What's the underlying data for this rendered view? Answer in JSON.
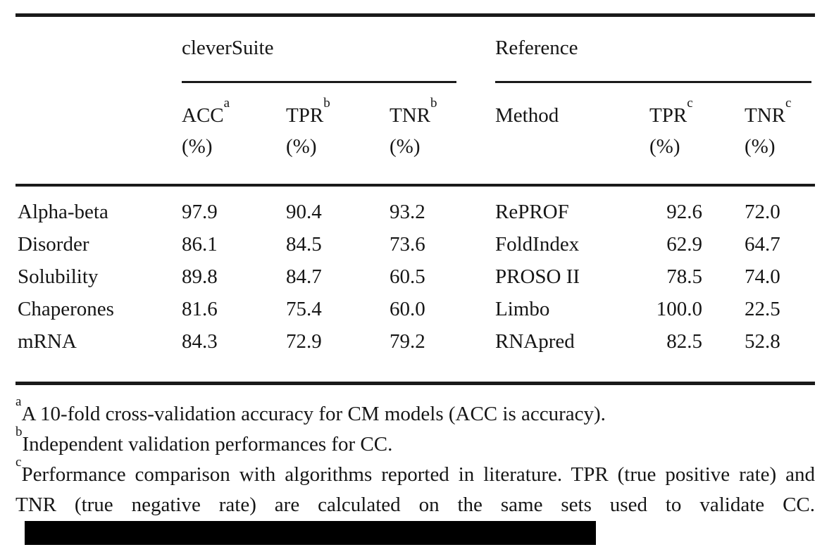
{
  "colors": {
    "background": "#ffffff",
    "text": "#161616",
    "rule": "#1a1a1a",
    "redaction": "#000000"
  },
  "table": {
    "group_left": "cleverSuite",
    "group_right": "Reference",
    "columns": {
      "acc": {
        "label": "ACC",
        "sup": "a",
        "unit": "(%)"
      },
      "tpr_b": {
        "label": "TPR",
        "sup": "b",
        "unit": "(%)"
      },
      "tnr_b": {
        "label": "TNR",
        "sup": "b",
        "unit": "(%)"
      },
      "method": {
        "label": "Method"
      },
      "tpr_c": {
        "label": "TPR",
        "sup": "c",
        "unit": "(%)"
      },
      "tnr_c": {
        "label": "TNR",
        "sup": "c",
        "unit": "(%)"
      }
    },
    "rows": [
      {
        "label": "Alpha-beta",
        "acc": "97.9",
        "tpr_b": "90.4",
        "tnr_b": "93.2",
        "method": "RePROF",
        "tpr_c": "92.6",
        "tnr_c": "72.0"
      },
      {
        "label": "Disorder",
        "acc": "86.1",
        "tpr_b": "84.5",
        "tnr_b": "73.6",
        "method": "FoldIndex",
        "tpr_c": "62.9",
        "tnr_c": "64.7"
      },
      {
        "label": "Solubility",
        "acc": "89.8",
        "tpr_b": "84.7",
        "tnr_b": "60.5",
        "method": "PROSO II",
        "tpr_c": "78.5",
        "tnr_c": "74.0"
      },
      {
        "label": "Chaperones",
        "acc": "81.6",
        "tpr_b": "75.4",
        "tnr_b": "60.0",
        "method": "Limbo",
        "tpr_c": "100.0",
        "tnr_c": "22.5"
      },
      {
        "label": "mRNA",
        "acc": "84.3",
        "tpr_b": "72.9",
        "tnr_b": "79.2",
        "method": "RNApred",
        "tpr_c": "82.5",
        "tnr_c": "52.8"
      }
    ]
  },
  "footnotes": {
    "a": {
      "sup": "a",
      "text": "A 10-fold cross-validation accuracy for CM models (ACC is accuracy)."
    },
    "b": {
      "sup": "b",
      "text": "Independent validation performances for CC."
    },
    "c": {
      "sup": "c",
      "text": "Performance comparison with algorithms reported in literature. TPR (true positive rate) and TNR (true negative rate) are calculated on the same sets used to validate CC."
    }
  }
}
